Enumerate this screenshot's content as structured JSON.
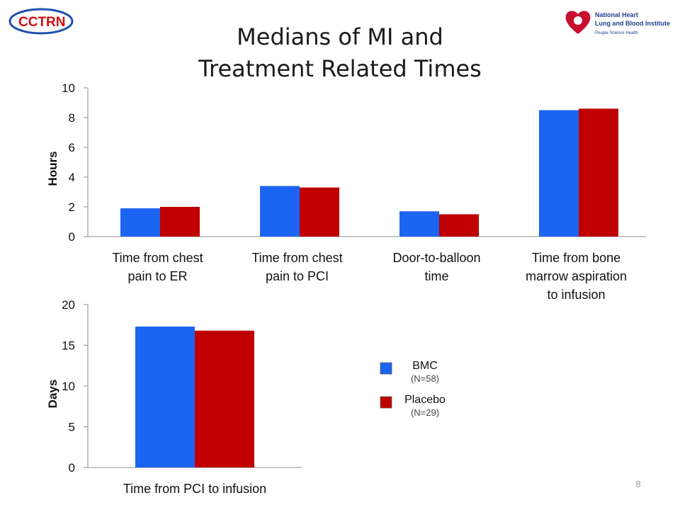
{
  "slide": {
    "title_line1": "Medians of MI and",
    "title_line2": "Treatment Related Times",
    "page_number": "8",
    "logo_left_text": "CCTRN",
    "logo_right_line1": "National Heart",
    "logo_right_line2": "Lung and Blood Institute",
    "logo_right_tagline": "People Science Health"
  },
  "colors": {
    "bmc": "#1c64f2",
    "placebo": "#c00000",
    "axis": "#8c8c8c"
  },
  "chart_data": [
    {
      "type": "bar",
      "ylabel": "Hours",
      "ylim": [
        0,
        10
      ],
      "yticks": [
        "0",
        "2",
        "4",
        "6",
        "8",
        "10"
      ],
      "categories": [
        [
          "Time from chest",
          "pain to ER"
        ],
        [
          "Time from chest",
          "pain to PCI"
        ],
        [
          "Door-to-balloon",
          "time"
        ],
        [
          "Time from bone",
          "marrow aspiration",
          "to infusion"
        ]
      ],
      "series": [
        {
          "key": "bmc",
          "values": [
            1.9,
            3.4,
            1.7,
            8.5
          ]
        },
        {
          "key": "placebo",
          "values": [
            2.0,
            3.3,
            1.5,
            8.6
          ]
        }
      ]
    },
    {
      "type": "bar",
      "ylabel": "Days",
      "ylim": [
        0,
        20
      ],
      "yticks": [
        "0",
        "5",
        "10",
        "15",
        "20"
      ],
      "categories": [
        [
          "Time from PCI to infusion"
        ]
      ],
      "series": [
        {
          "key": "bmc",
          "values": [
            17.3
          ]
        },
        {
          "key": "placebo",
          "values": [
            16.8
          ]
        }
      ]
    }
  ],
  "legend": [
    {
      "key": "bmc",
      "label": "BMC",
      "sub": "(N=58)"
    },
    {
      "key": "placebo",
      "label": "Placebo",
      "sub": "(N=29)"
    }
  ]
}
